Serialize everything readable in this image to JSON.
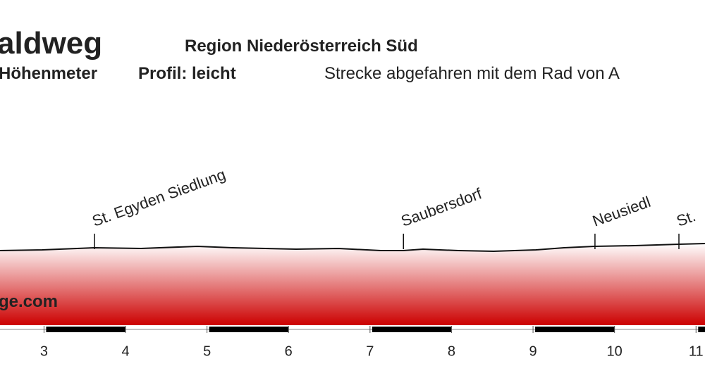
{
  "chart_data": {
    "type": "profile",
    "title": "aldweg",
    "region": "Region Niederösterreich Süd",
    "stats": "Höhenmeter",
    "profile_level": "Profil: leicht",
    "note": "Strecke abgefahren mit dem Rad von A",
    "watermark": "ge.com",
    "places": [
      {
        "label": "St. Egyden Siedlung",
        "km": 3.62
      },
      {
        "label": "Saubersdorf",
        "km": 7.41
      },
      {
        "label": "Neusiedl",
        "km": 9.76
      },
      {
        "label": "St.",
        "km": 10.79
      }
    ],
    "xlim": [
      2.46,
      11.11
    ],
    "xticks": [
      3,
      4,
      5,
      6,
      7,
      8,
      9,
      10,
      11
    ],
    "title_color": "#6b0d0d",
    "fill_color": "#cc0000"
  }
}
